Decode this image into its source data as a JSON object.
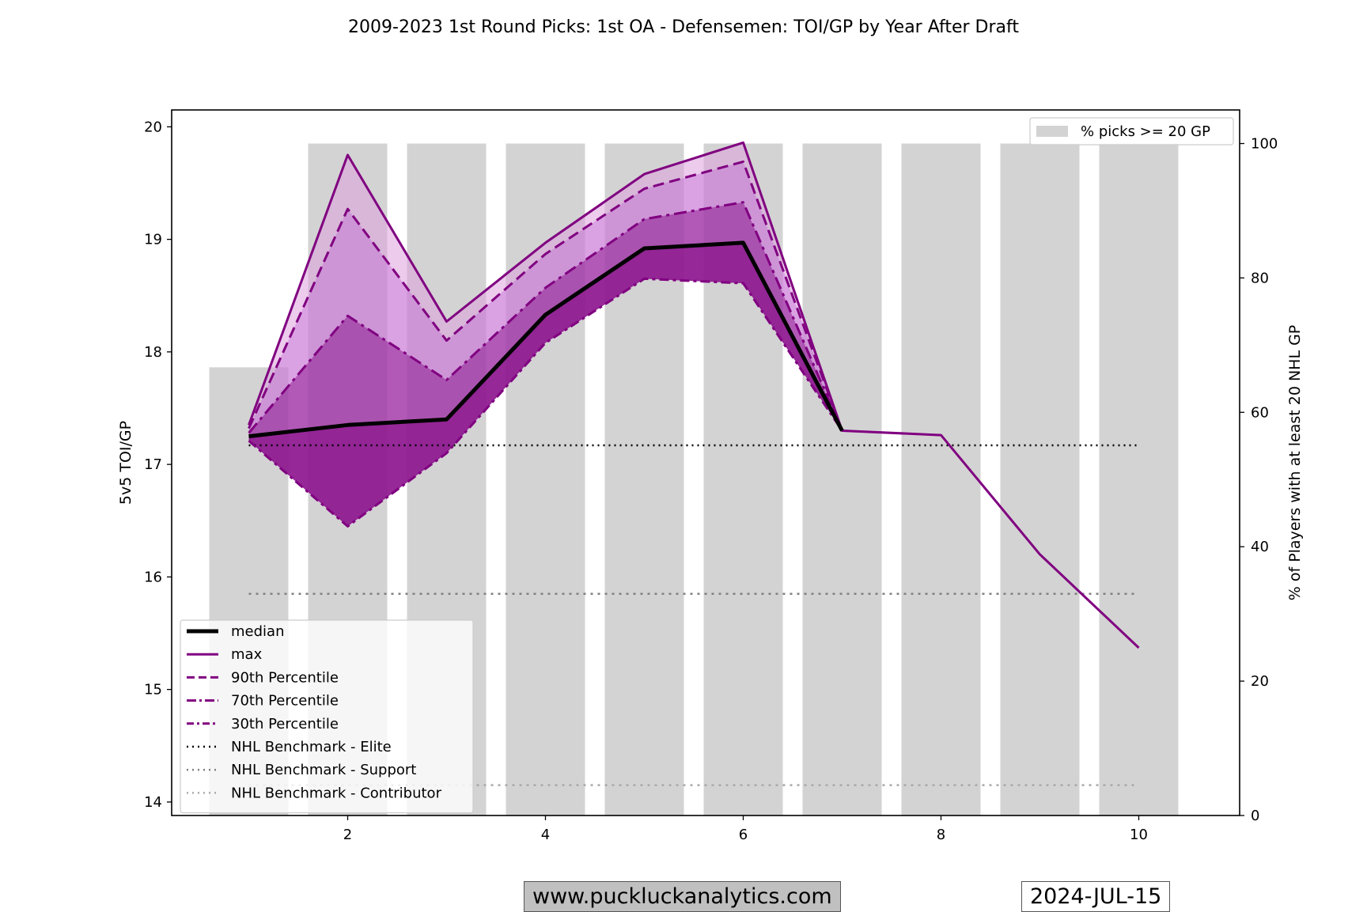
{
  "chart_data": {
    "type": "line",
    "title": "2009-2023 1st Round Picks: 1st OA - Defensemen: TOI/GP by Year After Draft",
    "ylabel": "5v5 TOI/GP",
    "y2label": "% of Players with at least 20 NHL GP",
    "xlim": [
      0.22,
      11.02
    ],
    "ylim": [
      13.88,
      20.15
    ],
    "y2lim": [
      0,
      105
    ],
    "x_ticks": [
      2,
      4,
      6,
      8,
      10
    ],
    "y_ticks": [
      14,
      15,
      16,
      17,
      18,
      19,
      20
    ],
    "y2_ticks": [
      0,
      20,
      40,
      60,
      80,
      100
    ],
    "x": [
      1,
      2,
      3,
      4,
      5,
      6,
      7,
      8,
      9,
      10
    ],
    "series": [
      {
        "name": "max",
        "values": [
          17.35,
          19.75,
          18.27,
          18.97,
          19.58,
          19.86,
          17.3,
          17.26,
          16.2,
          15.37
        ]
      },
      {
        "name": "90th Percentile",
        "values": [
          17.32,
          19.27,
          18.1,
          18.87,
          19.45,
          19.69,
          17.3,
          17.26,
          16.2,
          15.37
        ]
      },
      {
        "name": "70th Percentile",
        "values": [
          17.28,
          18.32,
          17.75,
          18.57,
          19.18,
          19.33,
          17.3,
          17.26,
          16.2,
          15.37
        ]
      },
      {
        "name": "median",
        "values": [
          17.25,
          17.35,
          17.4,
          18.33,
          18.92,
          18.97,
          17.3,
          17.26,
          16.2,
          15.37
        ]
      },
      {
        "name": "30th Percentile",
        "values": [
          17.21,
          16.45,
          17.1,
          18.08,
          18.65,
          18.61,
          17.3,
          17.26,
          16.2,
          15.37
        ]
      }
    ],
    "benchmarks": [
      {
        "name": "NHL Benchmark - Elite",
        "value": 17.17,
        "color": "#000000"
      },
      {
        "name": "NHL Benchmark - Support",
        "value": 15.85,
        "color": "#808080"
      },
      {
        "name": "NHL Benchmark - Contributor",
        "value": 14.15,
        "color": "#a9a9a9"
      }
    ],
    "bars": {
      "name": "% picks >= 20 GP",
      "x": [
        1,
        2,
        3,
        4,
        5,
        6,
        7,
        8,
        9,
        10
      ],
      "values": [
        66.7,
        100,
        100,
        100,
        100,
        100,
        100,
        100,
        100,
        100
      ],
      "color": "#d3d3d3"
    },
    "legend_placement": "lower-left",
    "bar_legend_placement": "upper-right",
    "colors": {
      "purple": "#800080",
      "median": "#000000",
      "band_light": "#dda0dd",
      "band_mid": "#ba55d3",
      "band_dark": "#800080"
    },
    "grid": false
  },
  "footer": {
    "website": "www.puckluckanalytics.com",
    "date": "2024-JUL-15"
  }
}
